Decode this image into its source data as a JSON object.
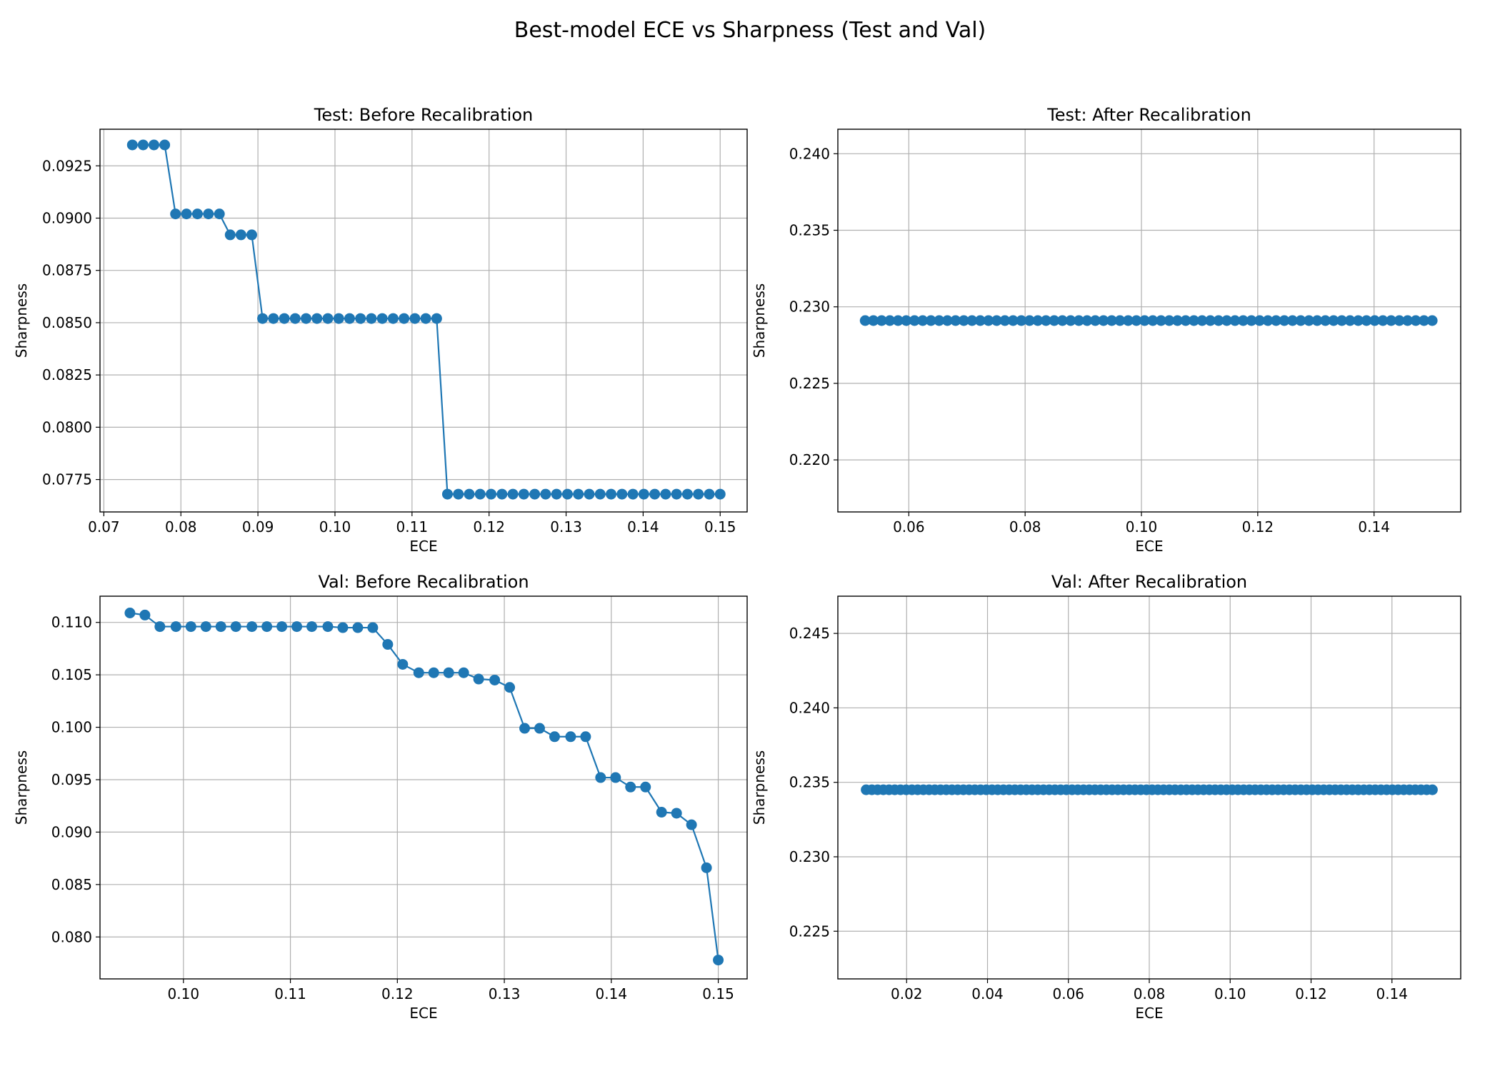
{
  "figure": {
    "title": "Best-model ECE vs Sharpness (Test and Val)"
  },
  "colors": {
    "series": "#1f77b4",
    "grid": "#b0b0b0",
    "axes": "#000000"
  },
  "chart_data": [
    {
      "type": "line",
      "marker": "circle",
      "title": "Test: Before Recalibration",
      "xlabel": "ECE",
      "ylabel": "Sharpness",
      "grid": true,
      "xlim": [
        0.0695,
        0.1535
      ],
      "ylim": [
        0.07595,
        0.09425
      ],
      "xticks": [
        0.07,
        0.08,
        0.09,
        0.1,
        0.11,
        0.12,
        0.13,
        0.14,
        0.15
      ],
      "xtick_labels": [
        "0.07",
        "0.08",
        "0.09",
        "0.10",
        "0.11",
        "0.12",
        "0.13",
        "0.14",
        "0.15"
      ],
      "yticks": [
        0.0775,
        0.08,
        0.0825,
        0.085,
        0.0875,
        0.09,
        0.0925
      ],
      "ytick_labels": [
        "0.0775",
        "0.0800",
        "0.0825",
        "0.0850",
        "0.0875",
        "0.0900",
        "0.0925"
      ],
      "series": [
        {
          "segments": [
            {
              "x_start": 0.0737,
              "x_end": 0.0779,
              "count": 4,
              "y": 0.0935
            },
            {
              "x_start": 0.0793,
              "x_end": 0.085,
              "count": 5,
              "y": 0.0902
            },
            {
              "x_start": 0.0864,
              "x_end": 0.0892,
              "count": 3,
              "y": 0.0892
            },
            {
              "x_start": 0.0906,
              "x_end": 0.1132,
              "count": 17,
              "y": 0.0852
            },
            {
              "x_start": 0.1146,
              "x_end": 0.15,
              "count": 26,
              "y": 0.0768
            }
          ]
        }
      ]
    },
    {
      "type": "line",
      "marker": "circle",
      "title": "Test: After Recalibration",
      "xlabel": "ECE",
      "ylabel": "Sharpness",
      "grid": true,
      "xlim": [
        0.0478,
        0.1549
      ],
      "ylim": [
        0.2166,
        0.2416
      ],
      "xticks": [
        0.06,
        0.08,
        0.1,
        0.12,
        0.14
      ],
      "xtick_labels": [
        "0.06",
        "0.08",
        "0.10",
        "0.12",
        "0.14"
      ],
      "yticks": [
        0.22,
        0.225,
        0.23,
        0.235,
        0.24
      ],
      "ytick_labels": [
        "0.220",
        "0.225",
        "0.230",
        "0.235",
        "0.240"
      ],
      "series": [
        {
          "segments": [
            {
              "x_start": 0.0525,
              "x_end": 0.15,
              "count": 70,
              "y": 0.2291
            }
          ]
        }
      ]
    },
    {
      "type": "line",
      "marker": "circle",
      "title": "Val: Before Recalibration",
      "xlabel": "ECE",
      "ylabel": "Sharpness",
      "grid": true,
      "xlim": [
        0.0922,
        0.1527
      ],
      "ylim": [
        0.076,
        0.1125
      ],
      "xticks": [
        0.1,
        0.11,
        0.12,
        0.13,
        0.14,
        0.15
      ],
      "xtick_labels": [
        "0.10",
        "0.11",
        "0.12",
        "0.13",
        "0.14",
        "0.15"
      ],
      "yticks": [
        0.08,
        0.085,
        0.09,
        0.095,
        0.1,
        0.105,
        0.11
      ],
      "ytick_labels": [
        "0.080",
        "0.085",
        "0.090",
        "0.095",
        "0.100",
        "0.105",
        "0.110"
      ],
      "series": [
        {
          "x": [
            0.095,
            0.0964,
            0.0978,
            0.0993,
            0.1007,
            0.1021,
            0.1035,
            0.1049,
            0.1064,
            0.1078,
            0.1092,
            0.1106,
            0.112,
            0.1135,
            0.1149,
            0.1163,
            0.1177,
            0.1191,
            0.1205,
            0.122,
            0.1234,
            0.1248,
            0.1262,
            0.1276,
            0.1291,
            0.1305,
            0.1319,
            0.1333,
            0.1347,
            0.1362,
            0.1376,
            0.139,
            0.1404,
            0.1418,
            0.1432,
            0.1447,
            0.1461,
            0.1475,
            0.1489,
            0.15
          ],
          "y": [
            0.1109,
            0.1107,
            0.1096,
            0.1096,
            0.1096,
            0.1096,
            0.1096,
            0.1096,
            0.1096,
            0.1096,
            0.1096,
            0.1096,
            0.1096,
            0.1096,
            0.1095,
            0.1095,
            0.1095,
            0.1079,
            0.106,
            0.1052,
            0.1052,
            0.1052,
            0.1052,
            0.1046,
            0.1045,
            0.1038,
            0.0999,
            0.0999,
            0.0991,
            0.0991,
            0.0991,
            0.0952,
            0.0952,
            0.0943,
            0.0943,
            0.0919,
            0.0918,
            0.0907,
            0.0866,
            0.0778
          ]
        }
      ]
    },
    {
      "type": "line",
      "marker": "circle",
      "title": "Val: After Recalibration",
      "xlabel": "ECE",
      "ylabel": "Sharpness",
      "grid": true,
      "xlim": [
        0.003,
        0.157
      ],
      "ylim": [
        0.2218,
        0.2475
      ],
      "xticks": [
        0.02,
        0.04,
        0.06,
        0.08,
        0.1,
        0.12,
        0.14
      ],
      "xtick_labels": [
        "0.02",
        "0.04",
        "0.06",
        "0.08",
        "0.10",
        "0.12",
        "0.14"
      ],
      "yticks": [
        0.225,
        0.23,
        0.235,
        0.24,
        0.245
      ],
      "ytick_labels": [
        "0.225",
        "0.230",
        "0.235",
        "0.240",
        "0.245"
      ],
      "series": [
        {
          "segments": [
            {
              "x_start": 0.01,
              "x_end": 0.15,
              "count": 100,
              "y": 0.2345
            }
          ]
        }
      ]
    }
  ]
}
